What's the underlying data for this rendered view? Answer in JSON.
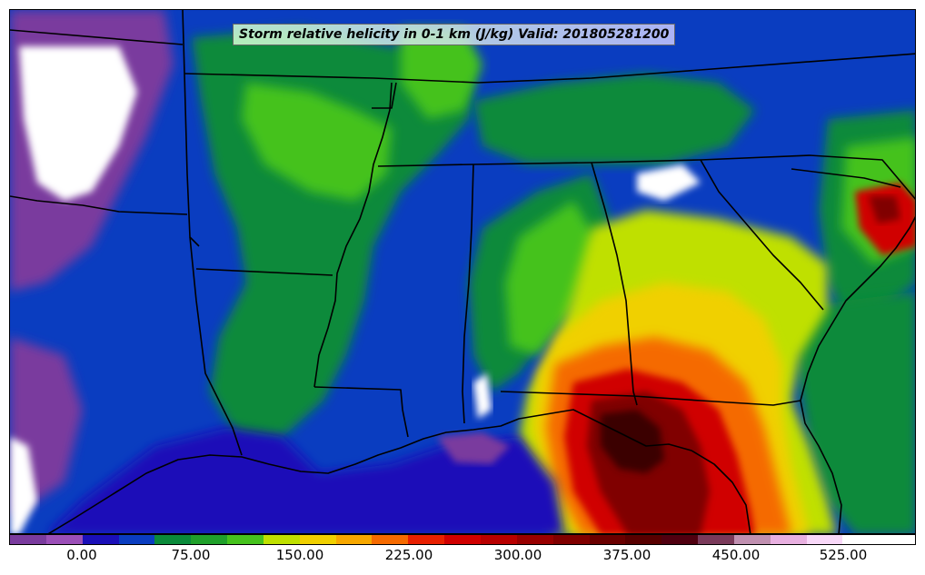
{
  "title": "Storm relative helicity in 0-1 km (J/kg) Valid: 201805281200",
  "colorbar": {
    "colors": [
      "#7a3b9e",
      "#9b4fb8",
      "#1a0fb8",
      "#0a3dc0",
      "#0a8a3a",
      "#1fa02a",
      "#45c21c",
      "#bfe000",
      "#f0d000",
      "#f7a800",
      "#f56a00",
      "#e82000",
      "#d00000",
      "#b80000",
      "#980000",
      "#800000",
      "#6a0000",
      "#580000",
      "#500010",
      "#7a3a5a",
      "#c090b0",
      "#e8b0e0",
      "#f8d8f8",
      "#ffffff",
      "#ffffff"
    ],
    "tick_labels": [
      "0.00",
      "75.00",
      "150.00",
      "225.00",
      "300.00",
      "375.00",
      "450.00",
      "525.00"
    ],
    "tick_values": [
      0,
      75,
      150,
      225,
      300,
      375,
      450,
      525
    ]
  },
  "field_colors": {
    "negative": "#7a3b9e",
    "low": "#1a0fb8",
    "low_mid": "#0a8a3a",
    "mid": "#45c21c",
    "yellow_green": "#bfe000",
    "yellow": "#f0d000",
    "orange": "#f56a00",
    "red": "#d00000",
    "dark_red": "#800000",
    "very_dark": "#3a0000",
    "missing": "#ffffff",
    "boundary": "#000000"
  }
}
